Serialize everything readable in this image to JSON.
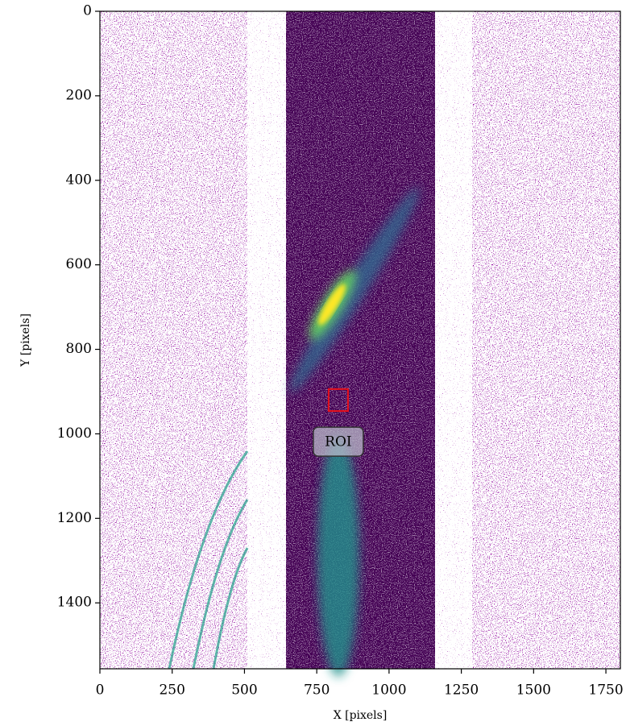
{
  "chart_data": {
    "type": "image",
    "xlabel": "X [pixels]",
    "ylabel": "Y [pixels]",
    "xlim": [
      0,
      1800
    ],
    "ylim": [
      1556,
      0
    ],
    "xticks": [
      0,
      250,
      500,
      750,
      1000,
      1250,
      1500,
      1750
    ],
    "yticks": [
      0,
      200,
      400,
      600,
      800,
      1000,
      1200,
      1400
    ],
    "colormap": "viridis",
    "roi": {
      "label": "ROI",
      "x": [
        791,
        858
      ],
      "y": [
        894,
        946
      ],
      "color": "#e8101a"
    }
  }
}
